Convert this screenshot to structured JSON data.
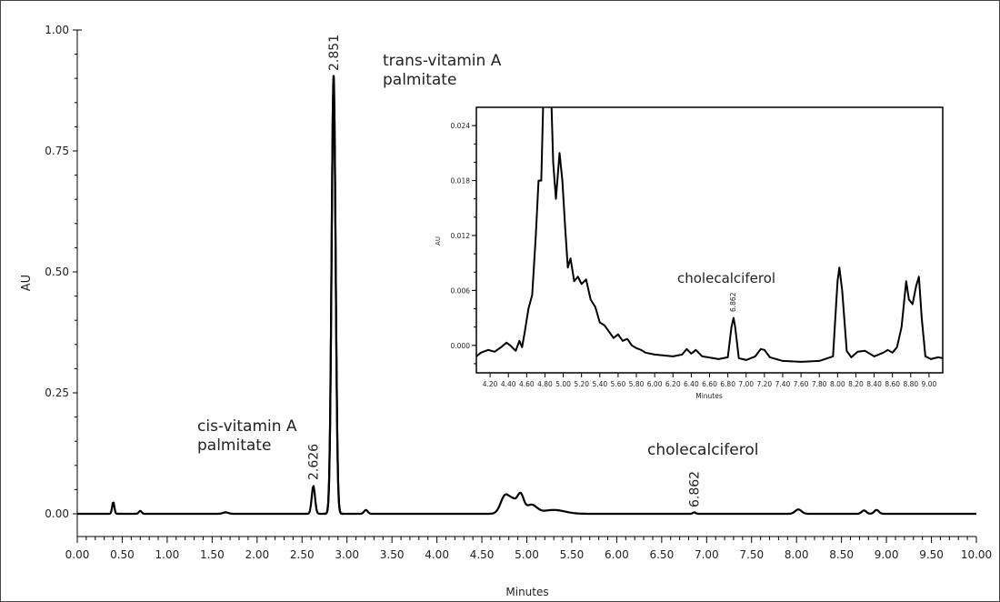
{
  "chart_data": [
    {
      "type": "line",
      "xlabel": "Minutes",
      "ylabel": "AU",
      "xlim": [
        0,
        10
      ],
      "ylim": [
        0,
        1
      ],
      "x_ticks": [
        "0.00",
        "0.50",
        "1.00",
        "1.50",
        "2.00",
        "2.50",
        "3.00",
        "3.50",
        "4.00",
        "4.50",
        "5.00",
        "5.50",
        "6.00",
        "6.50",
        "7.00",
        "7.50",
        "8.00",
        "8.50",
        "9.00",
        "9.50",
        "10.00"
      ],
      "y_ticks": [
        "0.00",
        "0.25",
        "0.50",
        "0.75",
        "1.00"
      ],
      "peaks": [
        {
          "x": 0.4,
          "y": 0.025,
          "w": 0.012
        },
        {
          "x": 0.7,
          "y": 0.006,
          "w": 0.015
        },
        {
          "x": 1.65,
          "y": 0.003,
          "w": 0.03
        },
        {
          "x": 2.626,
          "y": 0.058,
          "w": 0.018
        },
        {
          "x": 2.851,
          "y": 0.905,
          "w": 0.022
        },
        {
          "x": 3.21,
          "y": 0.008,
          "w": 0.02
        },
        {
          "x": 4.76,
          "y": 0.038,
          "w": 0.05
        },
        {
          "x": 4.85,
          "y": 0.022,
          "w": 0.04
        },
        {
          "x": 4.93,
          "y": 0.038,
          "w": 0.035
        },
        {
          "x": 5.05,
          "y": 0.018,
          "w": 0.06
        },
        {
          "x": 5.3,
          "y": 0.008,
          "w": 0.12
        },
        {
          "x": 6.862,
          "y": 0.003,
          "w": 0.015
        },
        {
          "x": 8.02,
          "y": 0.009,
          "w": 0.035
        },
        {
          "x": 8.75,
          "y": 0.007,
          "w": 0.025
        },
        {
          "x": 8.89,
          "y": 0.008,
          "w": 0.025
        }
      ],
      "peak_labels": [
        {
          "time": "2.626",
          "name": "cis-vitamin A\npalmitate"
        },
        {
          "time": "2.851",
          "name": "trans-vitamin A\npalmitate"
        },
        {
          "time": "6.862",
          "name": "cholecalciferol"
        }
      ]
    },
    {
      "type": "line",
      "xlabel": "Minutes",
      "ylabel": "AU",
      "xlim": [
        4.05,
        9.15
      ],
      "ylim": [
        -0.003,
        0.026
      ],
      "x_ticks": [
        "4.20",
        "4.40",
        "4.60",
        "4.80",
        "5.00",
        "5.20",
        "5.40",
        "5.60",
        "5.80",
        "6.00",
        "6.20",
        "6.40",
        "6.60",
        "6.80",
        "7.00",
        "7.20",
        "7.40",
        "7.60",
        "7.80",
        "8.00",
        "8.20",
        "8.40",
        "8.60",
        "8.80",
        "9.00"
      ],
      "y_ticks": [
        "0.000",
        "0.006",
        "0.012",
        "0.018",
        "0.024"
      ],
      "points": [
        [
          4.05,
          -0.0012
        ],
        [
          4.1,
          -0.0008
        ],
        [
          4.18,
          -0.0005
        ],
        [
          4.25,
          -0.0007
        ],
        [
          4.32,
          -0.0002
        ],
        [
          4.38,
          0.0003
        ],
        [
          4.42,
          0.0
        ],
        [
          4.48,
          -0.0006
        ],
        [
          4.52,
          0.0005
        ],
        [
          4.55,
          -0.0002
        ],
        [
          4.58,
          0.0015
        ],
        [
          4.62,
          0.004
        ],
        [
          4.66,
          0.0055
        ],
        [
          4.7,
          0.012
        ],
        [
          4.73,
          0.018
        ],
        [
          4.76,
          0.018
        ],
        [
          4.78,
          0.026
        ],
        [
          4.82,
          0.03
        ],
        [
          4.86,
          0.03
        ],
        [
          4.89,
          0.02
        ],
        [
          4.92,
          0.016
        ],
        [
          4.96,
          0.021
        ],
        [
          4.99,
          0.018
        ],
        [
          5.02,
          0.013
        ],
        [
          5.05,
          0.0085
        ],
        [
          5.08,
          0.0095
        ],
        [
          5.12,
          0.007
        ],
        [
          5.16,
          0.0075
        ],
        [
          5.2,
          0.0067
        ],
        [
          5.25,
          0.0072
        ],
        [
          5.3,
          0.005
        ],
        [
          5.35,
          0.0042
        ],
        [
          5.4,
          0.0025
        ],
        [
          5.45,
          0.0022
        ],
        [
          5.5,
          0.0015
        ],
        [
          5.55,
          0.0008
        ],
        [
          5.6,
          0.0012
        ],
        [
          5.65,
          0.0005
        ],
        [
          5.7,
          0.0007
        ],
        [
          5.75,
          0.0
        ],
        [
          5.8,
          -0.0003
        ],
        [
          5.85,
          -0.0005
        ],
        [
          5.9,
          -0.0008
        ],
        [
          6.0,
          -0.001
        ],
        [
          6.2,
          -0.0012
        ],
        [
          6.3,
          -0.001
        ],
        [
          6.35,
          -0.0004
        ],
        [
          6.4,
          -0.0009
        ],
        [
          6.45,
          -0.0005
        ],
        [
          6.52,
          -0.0012
        ],
        [
          6.7,
          -0.0015
        ],
        [
          6.8,
          -0.0013
        ],
        [
          6.84,
          0.002
        ],
        [
          6.862,
          0.003
        ],
        [
          6.88,
          0.002
        ],
        [
          6.92,
          -0.0014
        ],
        [
          7.0,
          -0.0016
        ],
        [
          7.1,
          -0.0012
        ],
        [
          7.16,
          -0.0004
        ],
        [
          7.2,
          -0.0005
        ],
        [
          7.26,
          -0.0013
        ],
        [
          7.4,
          -0.0017
        ],
        [
          7.6,
          -0.0018
        ],
        [
          7.8,
          -0.0017
        ],
        [
          7.95,
          -0.0012
        ],
        [
          8.0,
          0.007
        ],
        [
          8.02,
          0.0085
        ],
        [
          8.05,
          0.006
        ],
        [
          8.1,
          -0.0006
        ],
        [
          8.15,
          -0.0013
        ],
        [
          8.22,
          -0.0007
        ],
        [
          8.3,
          -0.0006
        ],
        [
          8.4,
          -0.0012
        ],
        [
          8.5,
          -0.0008
        ],
        [
          8.55,
          -0.0005
        ],
        [
          8.6,
          -0.0008
        ],
        [
          8.65,
          -0.0002
        ],
        [
          8.7,
          0.002
        ],
        [
          8.75,
          0.007
        ],
        [
          8.78,
          0.005
        ],
        [
          8.82,
          0.0045
        ],
        [
          8.86,
          0.0065
        ],
        [
          8.89,
          0.0075
        ],
        [
          8.92,
          0.003
        ],
        [
          8.96,
          -0.0012
        ],
        [
          9.02,
          -0.0015
        ],
        [
          9.1,
          -0.0013
        ],
        [
          9.15,
          -0.0014
        ]
      ],
      "peak_labels": [
        {
          "time": "6.862",
          "name": "cholecalciferol"
        }
      ]
    }
  ]
}
